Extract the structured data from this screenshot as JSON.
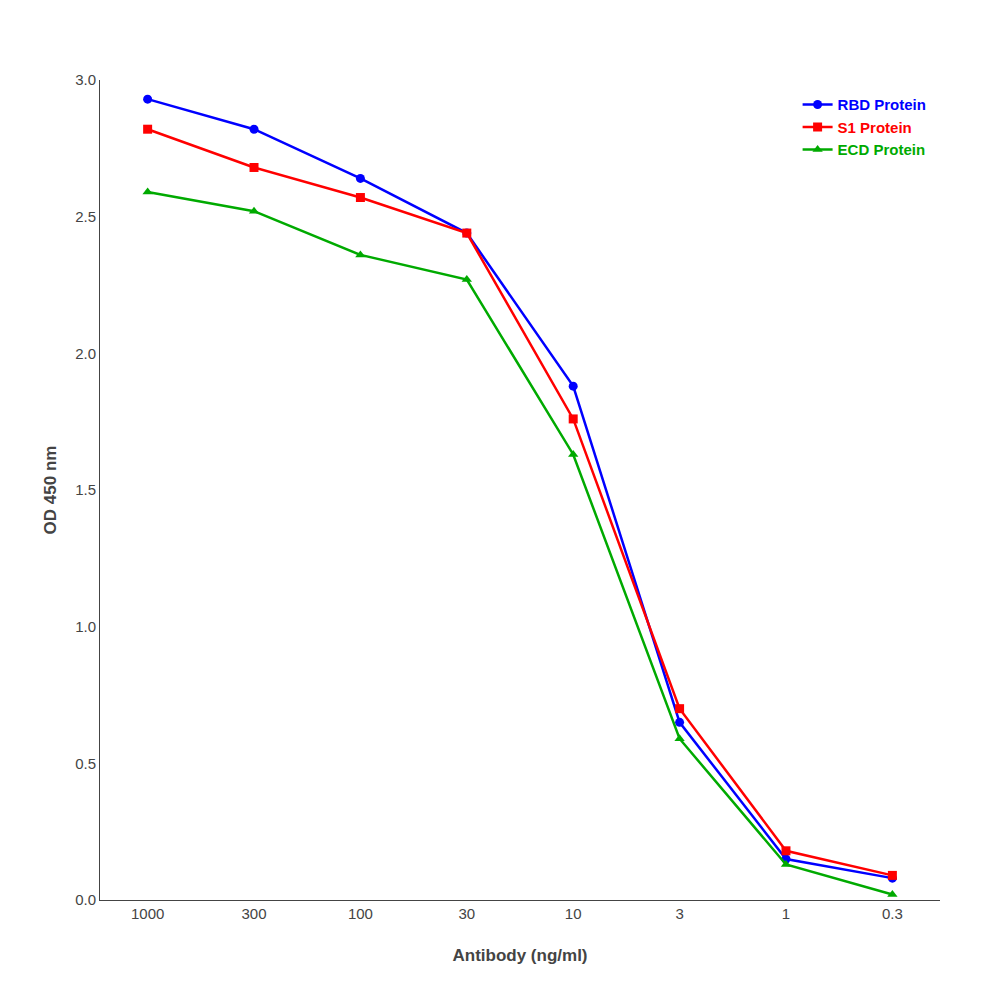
{
  "chart_data": {
    "type": "line",
    "xlabel": "Antibody (ng/ml)",
    "ylabel": "OD 450 nm",
    "categories": [
      "1000",
      "300",
      "100",
      "30",
      "10",
      "3",
      "1",
      "0.3"
    ],
    "series": [
      {
        "name": "RBD Protein",
        "color": "#0000FF",
        "marker": "circle",
        "values": [
          2.93,
          2.82,
          2.64,
          2.44,
          1.88,
          0.65,
          0.15,
          0.08
        ]
      },
      {
        "name": "S1 Protein",
        "color": "#FF0000",
        "marker": "square",
        "values": [
          2.82,
          2.68,
          2.57,
          2.44,
          1.76,
          0.7,
          0.18,
          0.09
        ]
      },
      {
        "name": "ECD Protein",
        "color": "#00AA00",
        "marker": "triangle-up",
        "values": [
          2.59,
          2.52,
          2.36,
          2.27,
          1.63,
          0.59,
          0.13,
          0.02
        ]
      }
    ],
    "ylim": [
      0.0,
      3.0
    ],
    "yticks": [
      {
        "value": 0,
        "label": "0.0"
      },
      0.5,
      {
        "value": 1,
        "label": "1.0"
      },
      1.5,
      {
        "value": 2,
        "label": "2.0"
      },
      2.5,
      {
        "value": 3,
        "label": "3.0"
      }
    ],
    "grid": false,
    "legend": "upper right"
  }
}
